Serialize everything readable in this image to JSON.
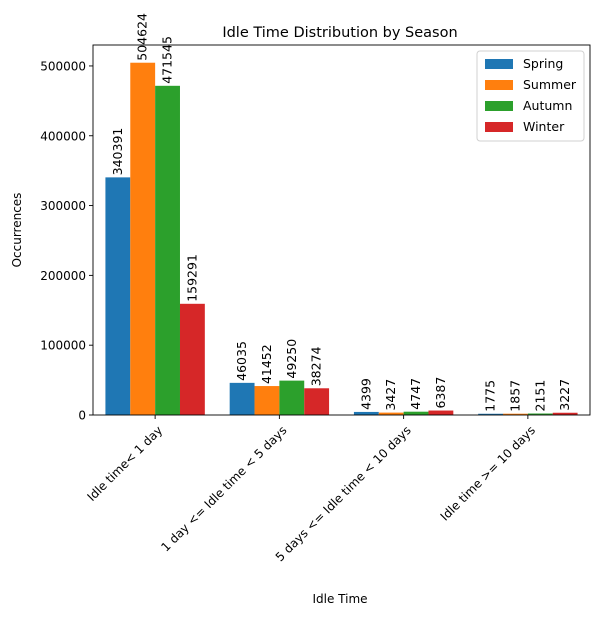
{
  "chart_data": {
    "type": "bar",
    "title": "Idle Time Distribution by Season",
    "xlabel": "Idle Time",
    "ylabel": "Occurrences",
    "categories": [
      "Idle time< 1 day",
      "1 day <= Idle time < 5 days",
      "5 days <= Idle time < 10 days",
      "Idle time >= 10 days"
    ],
    "series": [
      {
        "name": "Spring",
        "color": "#1f77b4",
        "values": [
          340391,
          46035,
          4399,
          1775
        ]
      },
      {
        "name": "Summer",
        "color": "#ff7f0e",
        "values": [
          504624,
          41452,
          3427,
          1857
        ]
      },
      {
        "name": "Autumn",
        "color": "#2ca02c",
        "values": [
          471545,
          49250,
          4747,
          2151
        ]
      },
      {
        "name": "Winter",
        "color": "#d62728",
        "values": [
          159291,
          38274,
          6387,
          3227
        ]
      }
    ],
    "yticks": [
      0,
      100000,
      200000,
      300000,
      400000,
      500000
    ],
    "ylim": [
      0,
      530000
    ],
    "grid": false,
    "legend_position": "top-right"
  }
}
